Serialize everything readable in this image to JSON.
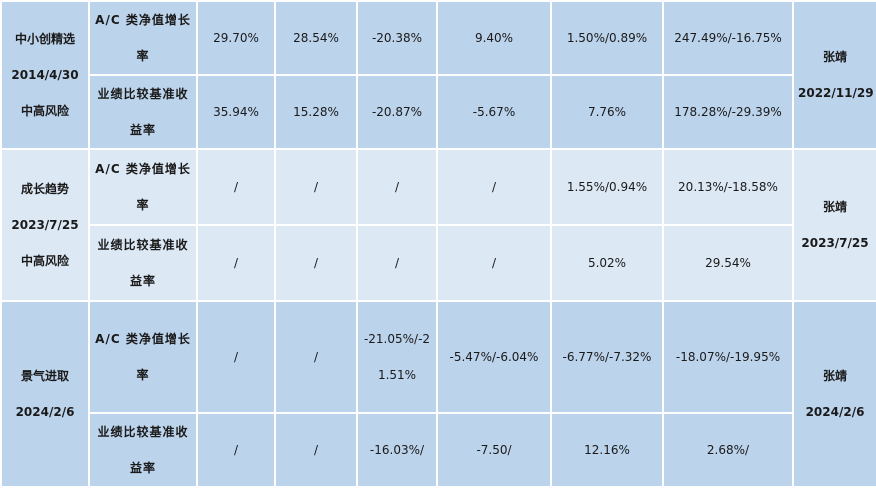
{
  "funds": [
    {
      "lines": [
        "中小创精选",
        "2014/4/30",
        "中高风险"
      ],
      "manager": "张靖",
      "manager_date": "2022/11/29",
      "rows": [
        {
          "label": "A/C 类净值增长率",
          "cells": [
            "29.70%",
            "28.54%",
            "-20.38%",
            "9.40%",
            "1.50%/0.89%",
            "247.49%/-16.75%"
          ]
        },
        {
          "label": "业绩比较基准收益率",
          "cells": [
            "35.94%",
            "15.28%",
            "-20.87%",
            "-5.67%",
            "7.76%",
            "178.28%/-29.39%"
          ]
        }
      ]
    },
    {
      "lines": [
        "成长趋势",
        "2023/7/25",
        "中高风险"
      ],
      "manager": "张靖",
      "manager_date": "2023/7/25",
      "rows": [
        {
          "label": "A/C 类净值增长率",
          "cells": [
            "/",
            "/",
            "/",
            "/",
            "1.55%/0.94%",
            "20.13%/-18.58%"
          ]
        },
        {
          "label": "业绩比较基准收益率",
          "cells": [
            "/",
            "/",
            "/",
            "/",
            "5.02%",
            "29.54%"
          ]
        }
      ]
    },
    {
      "lines": [
        "景气进取",
        "2024/2/6"
      ],
      "manager": "张靖",
      "manager_date": "2024/2/6",
      "rows": [
        {
          "label": "A/C 类净值增长率",
          "cells": [
            "/",
            "/",
            "-21.05%/-21.51%",
            "-5.47%/-6.04%",
            "-6.77%/-7.32%",
            "-18.07%/-19.95%"
          ]
        },
        {
          "label": "业绩比较基准收益率",
          "cells": [
            "/",
            "/",
            "-16.03%/",
            "-7.50/",
            "12.16%",
            "2.68%/"
          ]
        }
      ]
    }
  ]
}
